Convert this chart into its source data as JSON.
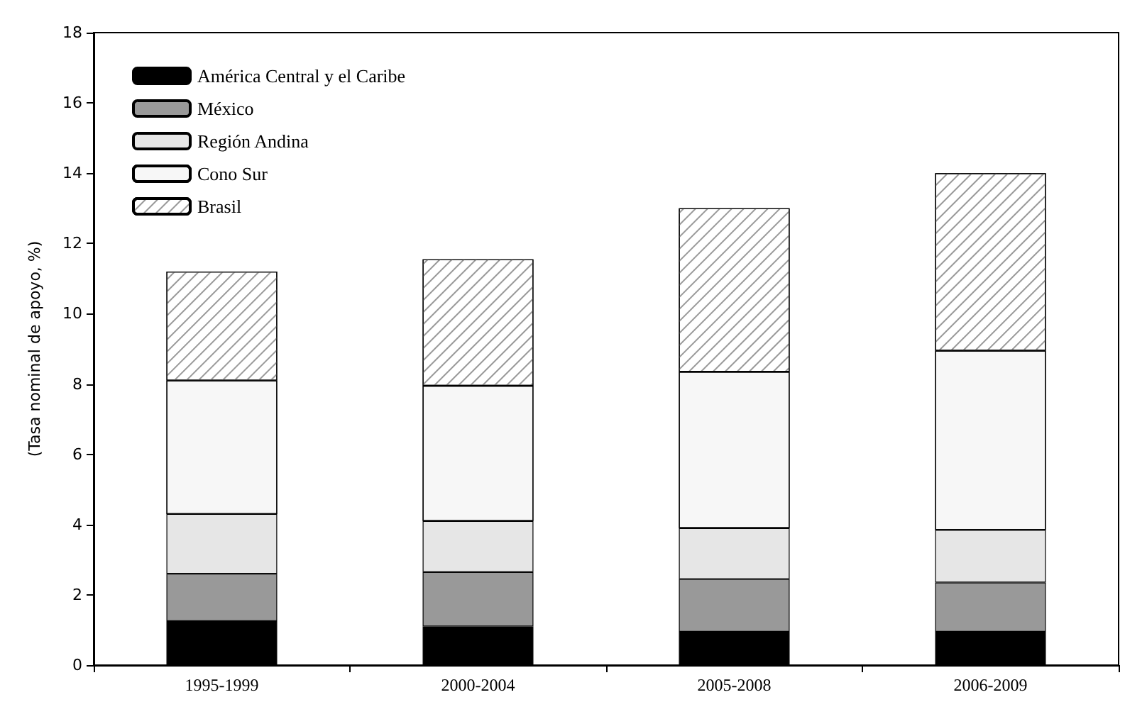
{
  "chart_data": {
    "type": "bar",
    "stacked": true,
    "ylabel": "(Tasa nominal de apoyo, %)",
    "categories": [
      "1995-1999",
      "2000-2004",
      "2005-2008",
      "2006-2009"
    ],
    "series": [
      {
        "name": "América Central y el Caribe",
        "color": "#000000",
        "values": [
          1.25,
          1.1,
          0.95,
          0.95
        ]
      },
      {
        "name": "México",
        "color": "#999999",
        "values": [
          1.35,
          1.55,
          1.5,
          1.4
        ]
      },
      {
        "name": "Región Andina",
        "color": "#e6e6e6",
        "values": [
          1.7,
          1.45,
          1.45,
          1.5
        ]
      },
      {
        "name": "Cono Sur",
        "color": "#f7f7f7",
        "values": [
          3.8,
          3.85,
          4.45,
          5.1
        ]
      },
      {
        "name": "Brasil",
        "color": "#ffffff",
        "values": [
          3.1,
          3.6,
          4.65,
          5.05
        ]
      }
    ],
    "ylim": [
      0,
      18
    ],
    "yticks": [
      0,
      2,
      4,
      6,
      8,
      10,
      12,
      14,
      16,
      18
    ],
    "grid": false,
    "legend": "top left"
  }
}
